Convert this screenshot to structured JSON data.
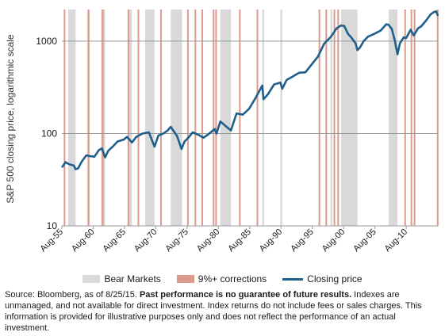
{
  "chart_data": {
    "type": "line",
    "ylabel": "S&P 500 closing price, logarithmic scale",
    "yscale": "log",
    "ylim": [
      10,
      2200
    ],
    "yticks": [
      10,
      100,
      1000
    ],
    "ytick_labels": [
      "10",
      "100",
      "1000"
    ],
    "xlim": [
      1955.6,
      2015.65
    ],
    "xticks": [
      1955.6,
      1960.6,
      1965.6,
      1970.6,
      1975.6,
      1980.6,
      1985.6,
      1990.6,
      1995.6,
      2000.6,
      2005.6,
      2010.6
    ],
    "xtick_labels": [
      "Aug-55",
      "Aug-60",
      "Aug-65",
      "Aug-70",
      "Aug-75",
      "Aug-80",
      "Aug-85",
      "Aug-90",
      "Aug-95",
      "Aug-00",
      "Aug-05",
      "Aug-10"
    ],
    "grid": "horizontal",
    "legend_position": "bottom",
    "series": [
      {
        "name": "Closing price",
        "color": "#1f5f8b",
        "x": [
          1955.6,
          1956.2,
          1956.6,
          1957.0,
          1957.5,
          1957.8,
          1958.2,
          1958.8,
          1959.5,
          1960.0,
          1960.8,
          1961.5,
          1962.0,
          1962.5,
          1963.0,
          1963.8,
          1964.5,
          1965.5,
          1966.0,
          1966.8,
          1967.5,
          1968.5,
          1969.5,
          1970.4,
          1971.0,
          1971.8,
          1972.5,
          1973.0,
          1973.5,
          1974.0,
          1974.7,
          1975.2,
          1975.8,
          1976.5,
          1977.5,
          1978.2,
          1979.0,
          1980.0,
          1980.3,
          1980.9,
          1981.5,
          1982.6,
          1983.5,
          1984.5,
          1985.5,
          1986.5,
          1987.6,
          1987.8,
          1988.5,
          1989.5,
          1990.5,
          1990.8,
          1991.5,
          1992.5,
          1993.5,
          1994.5,
          1995.5,
          1996.5,
          1997.5,
          1998.5,
          1999.5,
          2000.2,
          2000.7,
          2001.3,
          2001.8,
          2002.5,
          2002.8,
          2003.2,
          2003.8,
          2004.5,
          2005.5,
          2006.5,
          2007.4,
          2007.8,
          2008.3,
          2008.8,
          2009.2,
          2009.6,
          2010.2,
          2010.6,
          2011.3,
          2011.8,
          2012.5,
          2013.0,
          2013.7,
          2014.5,
          2015.0,
          2015.4,
          2015.65
        ],
        "values": [
          43,
          49,
          47,
          46,
          45,
          41,
          42,
          50,
          58,
          57,
          56,
          66,
          69,
          55,
          65,
          73,
          82,
          86,
          92,
          80,
          92,
          100,
          103,
          72,
          95,
          100,
          108,
          118,
          105,
          94,
          68,
          82,
          90,
          103,
          96,
          90,
          98,
          112,
          100,
          135,
          125,
          108,
          165,
          160,
          185,
          240,
          330,
          235,
          265,
          340,
          355,
          305,
          380,
          415,
          455,
          460,
          560,
          680,
          940,
          1100,
          1380,
          1480,
          1460,
          1200,
          1100,
          950,
          800,
          850,
          1000,
          1120,
          1200,
          1300,
          1520,
          1500,
          1350,
          1000,
          720,
          950,
          1100,
          1080,
          1330,
          1150,
          1380,
          1450,
          1650,
          1950,
          2060,
          2100,
          1880
        ]
      }
    ],
    "bear_markets": [
      [
        1956.6,
        1957.8
      ],
      [
        1961.9,
        1962.5
      ],
      [
        1966.1,
        1966.8
      ],
      [
        1968.9,
        1970.4
      ],
      [
        1973.0,
        1974.8
      ],
      [
        1980.9,
        1982.6
      ],
      [
        1987.6,
        1987.9
      ],
      [
        1990.5,
        1990.8
      ],
      [
        1998.5,
        1998.8
      ],
      [
        2000.2,
        2002.8
      ],
      [
        2007.8,
        2009.2
      ]
    ],
    "corrections": [
      [
        1955.9,
        1956.1
      ],
      [
        1959.7,
        1960.0
      ],
      [
        1961.95,
        1962.25
      ],
      [
        1966.1,
        1966.3
      ],
      [
        1967.7,
        1967.9
      ],
      [
        1971.3,
        1971.5
      ],
      [
        1975.6,
        1975.8
      ],
      [
        1976.8,
        1977.0
      ],
      [
        1977.9,
        1978.1
      ],
      [
        1979.7,
        1979.9
      ],
      [
        1980.1,
        1980.3
      ],
      [
        1983.9,
        1984.1
      ],
      [
        1986.7,
        1986.9
      ],
      [
        1996.6,
        1996.8
      ],
      [
        1997.7,
        1997.9
      ],
      [
        1999.0,
        1999.2
      ],
      [
        1999.6,
        1999.8
      ],
      [
        2010.3,
        2010.5
      ],
      [
        2011.3,
        2011.5
      ],
      [
        2011.8,
        2012.0
      ],
      [
        2015.5,
        2015.65
      ]
    ],
    "bear_color": "#d9d9d9",
    "correction_color": "#d99b8e",
    "legend": [
      "Bear Markets",
      "9%+ corrections",
      "Closing price"
    ]
  },
  "footnote": {
    "part1": "Source: Bloomberg, as of 8/25/15. ",
    "bold": "Past performance is no guarantee of future results.",
    "part2": " Indexes are unmanaged, and not available for direct investment. Index returns do not include fees or sales charges. This information is provided for illustrative purposes only and does not reflect the performance of an actual investment."
  }
}
